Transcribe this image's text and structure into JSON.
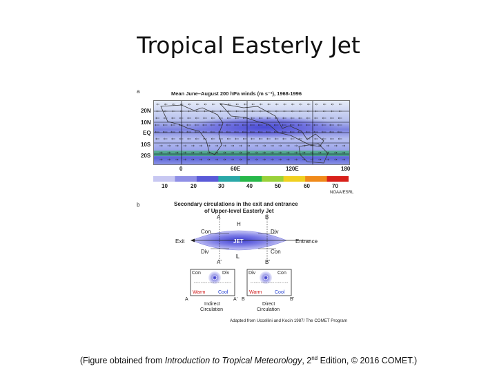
{
  "slide": {
    "title": "Tropical Easterly Jet",
    "caption": {
      "prefix": "(Figure obtained from ",
      "book": "Introduction to Tropical Meteorology",
      "middle": ", 2",
      "sup": "nd",
      "suffix": " Edition, © 2016 COMET.)"
    }
  },
  "panel_a": {
    "letter": "a",
    "title": "Mean June–August 200 hPa winds (m s⁻¹), 1968-1996",
    "lat_labels": [
      "20N",
      "10N",
      "EQ",
      "10S",
      "20S"
    ],
    "lon_labels": [
      "0",
      "60E",
      "120E",
      "180"
    ],
    "colorbar_ticks": [
      "10",
      "20",
      "30",
      "40",
      "50",
      "60",
      "70"
    ],
    "colorbar_colors": [
      "#c8c8f2",
      "#8f8fe6",
      "#5a5ad8",
      "#2aa8a8",
      "#27b84a",
      "#9ad13a",
      "#f0d020",
      "#f08a1a",
      "#d8201a"
    ],
    "source": "NOAA/ESRL"
  },
  "panel_b": {
    "letter": "b",
    "title_line1": "Secondary circulations in the exit and entrance",
    "title_line2": "of Upper-level Easterly Jet",
    "labels": {
      "A": "A",
      "B": "B",
      "A_prime": "A'",
      "B_prime": "B'",
      "H": "H",
      "L": "L",
      "con_left": "Con",
      "div_left": "Div",
      "div_right": "Div",
      "con_right": "Con",
      "exit": "Exit",
      "entrance": "Entrance",
      "jet": "JET"
    },
    "left_cell": {
      "con": "Con",
      "div": "Div",
      "warm": "Warm",
      "cool": "Cool",
      "A": "A",
      "A_prime": "A'",
      "line1": "Indirect",
      "line2": "Circulation"
    },
    "right_cell": {
      "div": "Div",
      "con": "Con",
      "warm": "Warm",
      "cool": "Cool",
      "B": "B",
      "B_prime": "B'",
      "line1": "Direct",
      "line2": "Circulation"
    },
    "credit": "Adapted from Uccellini and Kocin 1987/ The COMET Program"
  }
}
